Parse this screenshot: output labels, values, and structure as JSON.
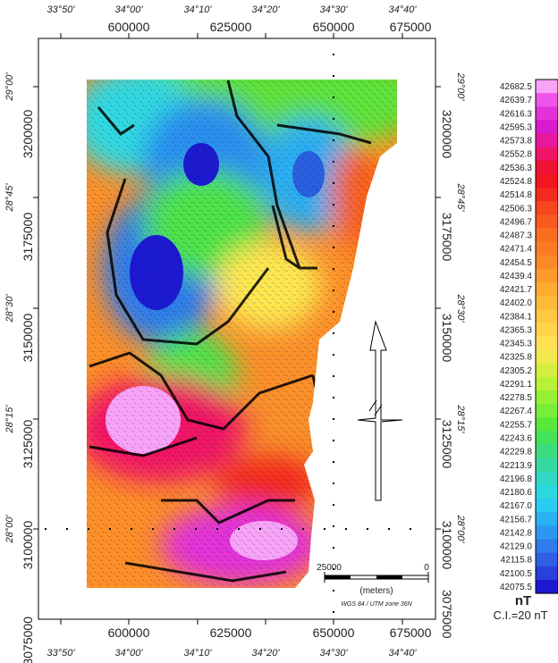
{
  "map": {
    "top_deg_labels": [
      "33°50'",
      "34°00'",
      "34°10'",
      "34°20'",
      "34°30'",
      "34°40'"
    ],
    "top_utm_labels": [
      "600000",
      "625000",
      "650000",
      "675000"
    ],
    "bottom_utm_labels": [
      "600000",
      "625000",
      "650000",
      "675000"
    ],
    "bottom_deg_labels": [
      "33°50'",
      "34°00'",
      "34°10'",
      "34°20'",
      "34°30'",
      "34°40'"
    ],
    "left_deg_labels": [
      "29°00'",
      "28°45'",
      "28°30'",
      "28°15'",
      "28°00'"
    ],
    "left_utm_labels": [
      "3200000",
      "3175000",
      "3150000",
      "3125000",
      "3100000",
      "3075000"
    ],
    "right_deg_labels": [
      "29°00'",
      "28°45'",
      "28°30'",
      "28°15'",
      "28°00'"
    ],
    "right_utm_labels": [
      "3200000",
      "3175000",
      "3150000",
      "3125000",
      "3100000",
      "3075000"
    ],
    "scale_left_label": "25000",
    "scale_right_label": "0",
    "scale_units": "(meters)",
    "projection": "WGS 84 / UTM zone 36N"
  },
  "legend": {
    "values": [
      "42682.5",
      "42639.7",
      "42616.3",
      "42595.3",
      "42573.8",
      "42552.8",
      "42536.3",
      "42524.8",
      "42514.8",
      "42506.3",
      "42496.7",
      "42487.3",
      "42471.4",
      "42454.5",
      "42439.4",
      "42421.7",
      "42402.0",
      "42384.1",
      "42365.3",
      "42345.3",
      "42325.8",
      "42305.2",
      "42291.1",
      "42278.5",
      "42267.4",
      "42255.7",
      "42243.6",
      "42229.8",
      "42213.9",
      "42196.8",
      "42180.6",
      "42167.0",
      "42156.7",
      "42142.8",
      "42129.0",
      "42115.8",
      "42100.5",
      "42075.5"
    ],
    "colors": [
      "#f7a3f7",
      "#ee55e8",
      "#e233d9",
      "#d81bcc",
      "#e8189d",
      "#f01466",
      "#ef1233",
      "#f21620",
      "#f52a1e",
      "#f8461e",
      "#f95a1f",
      "#fa6e22",
      "#fb7c25",
      "#fc8927",
      "#fd9a2c",
      "#fdab31",
      "#fdba39",
      "#fec840",
      "#ffd44a",
      "#ffe155",
      "#f1e94e",
      "#d5ee3f",
      "#b8f236",
      "#96f035",
      "#77ee38",
      "#58e83c",
      "#44e25b",
      "#3cdc7e",
      "#36d8a2",
      "#32d6c4",
      "#2ad8e0",
      "#2acbf1",
      "#2ab2f3",
      "#2d97f0",
      "#2f7cea",
      "#2f60e4",
      "#2a40dc",
      "#1c1ad0"
    ],
    "unit": "nT",
    "contour_interval": "C.I.=20 nT"
  }
}
